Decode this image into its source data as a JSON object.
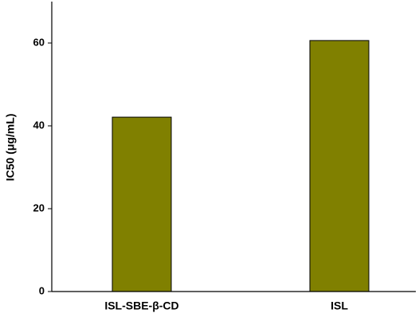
{
  "chart_data": {
    "type": "bar",
    "categories": [
      "ISL-SBE-β-CD",
      "ISL"
    ],
    "values": [
      42.1,
      60.6
    ],
    "color": "#808000",
    "y_label": "IC50 (μg/mL)",
    "ylim": [
      0,
      70
    ],
    "yticks": [
      0,
      20,
      40,
      60
    ]
  }
}
